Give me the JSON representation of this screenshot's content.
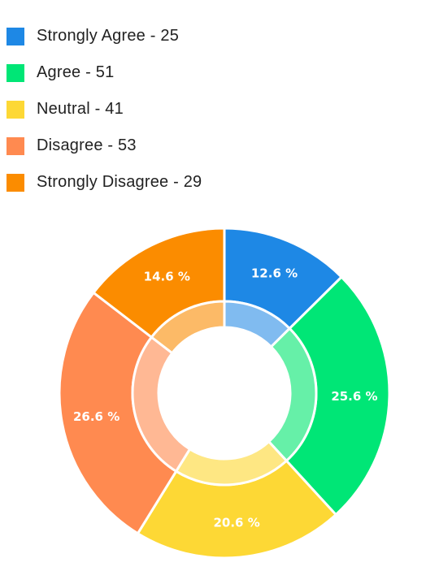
{
  "chart_data": {
    "type": "pie",
    "categories": [
      "Strongly Agree",
      "Agree",
      "Neutral",
      "Disagree",
      "Strongly Disagree"
    ],
    "values": [
      25,
      51,
      41,
      53,
      29
    ],
    "legend_labels": [
      "Strongly Agree - 25",
      "Agree - 51",
      "Neutral - 41",
      "Disagree - 53",
      "Strongly Disagree - 29"
    ],
    "percent_labels": [
      "12.6 %",
      "25.6 %",
      "20.6 %",
      "26.6 %",
      "14.6 %"
    ],
    "colors": [
      "#1e88e5",
      "#00e676",
      "#fdd835",
      "#ff8a50",
      "#fb8c00"
    ],
    "inner_colors": [
      "#80bbf0",
      "#66f0a8",
      "#fee783",
      "#ffb894",
      "#fcba67"
    ],
    "donut": true,
    "legend_position": "top-left"
  }
}
